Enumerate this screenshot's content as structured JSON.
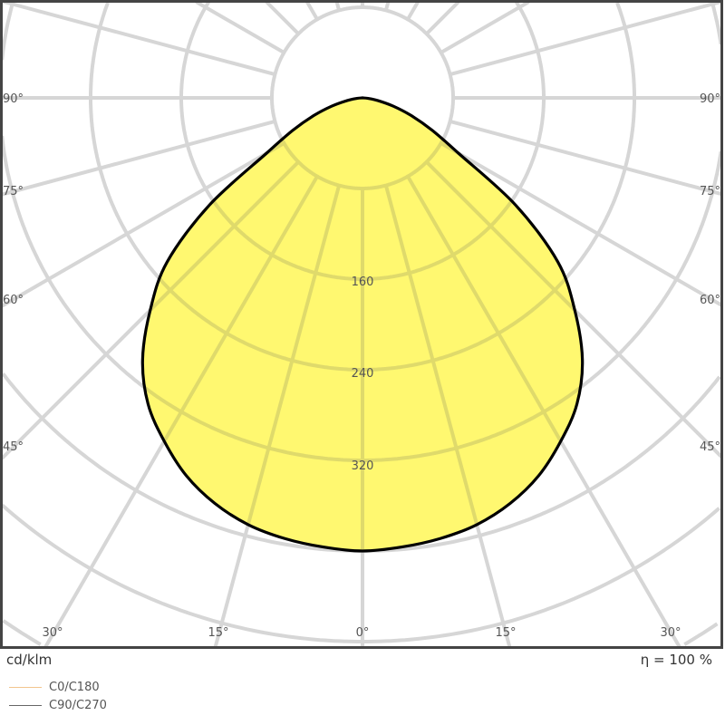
{
  "chart_data": {
    "type": "polar",
    "unit_label": "cd/klm",
    "efficiency_label": "η = 100 %",
    "angle_unit": "deg",
    "ring_step": 80,
    "ring_labels": [
      "160",
      "240",
      "320"
    ],
    "ring_label_values": [
      160,
      240,
      320
    ],
    "angle_labels_left": [
      "90°",
      "75°",
      "60°",
      "45°"
    ],
    "angle_labels_left_values": [
      90,
      75,
      60,
      45
    ],
    "angle_labels_right": [
      "90°",
      "75°",
      "60°",
      "45°"
    ],
    "angle_labels_bottom": [
      "30°",
      "15°",
      "0°",
      "15°",
      "30°"
    ],
    "angle_labels_bottom_values": [
      -30,
      -15,
      0,
      15,
      30
    ],
    "spoke_step": 15,
    "grid": true,
    "angles": [
      0,
      5,
      10,
      15,
      20,
      25,
      30,
      35,
      40,
      45,
      50,
      55,
      60,
      65,
      70,
      75,
      80,
      85,
      90
    ],
    "series": [
      {
        "name": "C0/C180",
        "color": "#f3c58e",
        "values": [
          400,
          398,
          395,
          390,
          381,
          368,
          350,
          330,
          302,
          265,
          225,
          165,
          98,
          68,
          46,
          28,
          14,
          5,
          0
        ]
      },
      {
        "name": "C90/C270",
        "color": "#666666",
        "values": [
          400,
          398,
          395,
          390,
          381,
          368,
          350,
          330,
          302,
          265,
          225,
          165,
          98,
          68,
          46,
          28,
          14,
          5,
          0
        ]
      }
    ],
    "fill_color": "#fff870",
    "outline_color": "#000000",
    "legend_position": "bottom-left"
  }
}
